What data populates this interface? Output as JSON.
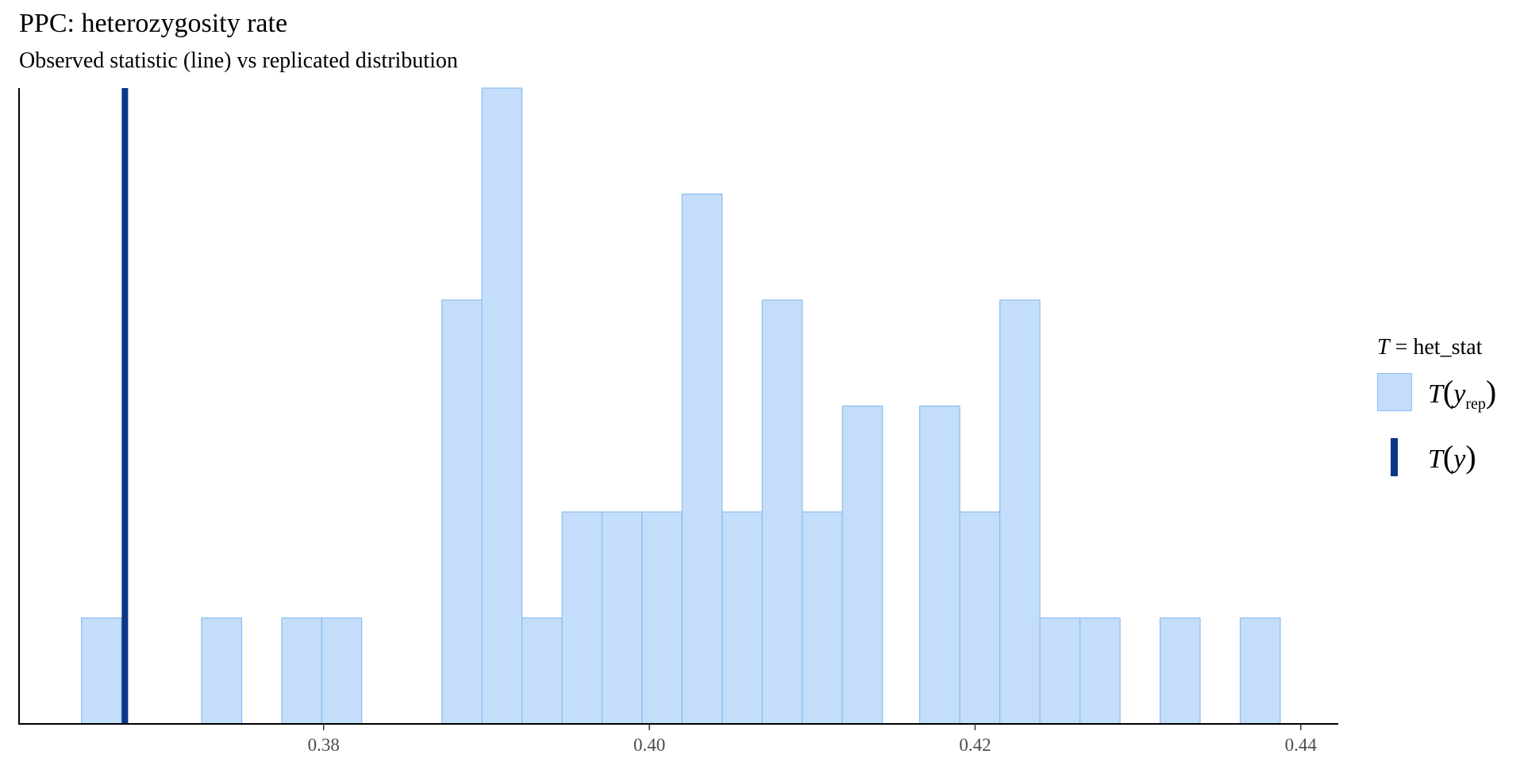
{
  "title": "PPC: heterozygosity rate",
  "subtitle": "Observed statistic (line) vs replicated distribution",
  "legend": {
    "title_var": "T",
    "title_rest": "= het_stat",
    "rep_fn": "T",
    "rep_arg": "y",
    "rep_sub": "rep",
    "obs_fn": "T",
    "obs_arg": "y"
  },
  "colors": {
    "bar_fill": "#c3ddfb",
    "bar_stroke": "#8cbdf0",
    "observed_line": "#0b3886",
    "axis": "#000000"
  },
  "chart_data": {
    "type": "bar",
    "title": "PPC: heterozygosity rate",
    "subtitle": "Observed statistic (line) vs replicated distribution",
    "xlabel": "",
    "ylabel": "",
    "xlim": [
      0.3613,
      0.4423
    ],
    "ylim": [
      0,
      6
    ],
    "x_ticks": [
      0.38,
      0.4,
      0.42,
      0.44
    ],
    "tick_labels": [
      "0.38",
      "0.40",
      "0.42",
      "0.44"
    ],
    "bin_width": 0.002458,
    "bins": [
      {
        "x0": 0.36513,
        "x1": 0.36759,
        "count": 1
      },
      {
        "x0": 0.37251,
        "x1": 0.37497,
        "count": 1
      },
      {
        "x0": 0.37743,
        "x1": 0.37989,
        "count": 1
      },
      {
        "x0": 0.37989,
        "x1": 0.38234,
        "count": 1
      },
      {
        "x0": 0.38726,
        "x1": 0.38972,
        "count": 4
      },
      {
        "x0": 0.38972,
        "x1": 0.39218,
        "count": 6
      },
      {
        "x0": 0.39218,
        "x1": 0.39464,
        "count": 1
      },
      {
        "x0": 0.39464,
        "x1": 0.3971,
        "count": 2
      },
      {
        "x0": 0.3971,
        "x1": 0.39955,
        "count": 2
      },
      {
        "x0": 0.39955,
        "x1": 0.40201,
        "count": 2
      },
      {
        "x0": 0.40201,
        "x1": 0.40447,
        "count": 5
      },
      {
        "x0": 0.40447,
        "x1": 0.40693,
        "count": 2
      },
      {
        "x0": 0.40693,
        "x1": 0.40939,
        "count": 4
      },
      {
        "x0": 0.40939,
        "x1": 0.41185,
        "count": 2
      },
      {
        "x0": 0.41185,
        "x1": 0.41431,
        "count": 3
      },
      {
        "x0": 0.4166,
        "x1": 0.41906,
        "count": 3
      },
      {
        "x0": 0.41906,
        "x1": 0.42152,
        "count": 2
      },
      {
        "x0": 0.42152,
        "x1": 0.42398,
        "count": 4
      },
      {
        "x0": 0.42398,
        "x1": 0.42644,
        "count": 1
      },
      {
        "x0": 0.42644,
        "x1": 0.4289,
        "count": 1
      },
      {
        "x0": 0.43136,
        "x1": 0.43382,
        "count": 1
      },
      {
        "x0": 0.43628,
        "x1": 0.43874,
        "count": 1
      }
    ],
    "observed_value": 0.3678,
    "legend_title": "T = het_stat",
    "legend_entries": [
      "T(y_rep)",
      "T(y)"
    ],
    "legend_position": "right",
    "grid": false,
    "y_axis_ticks": false
  }
}
